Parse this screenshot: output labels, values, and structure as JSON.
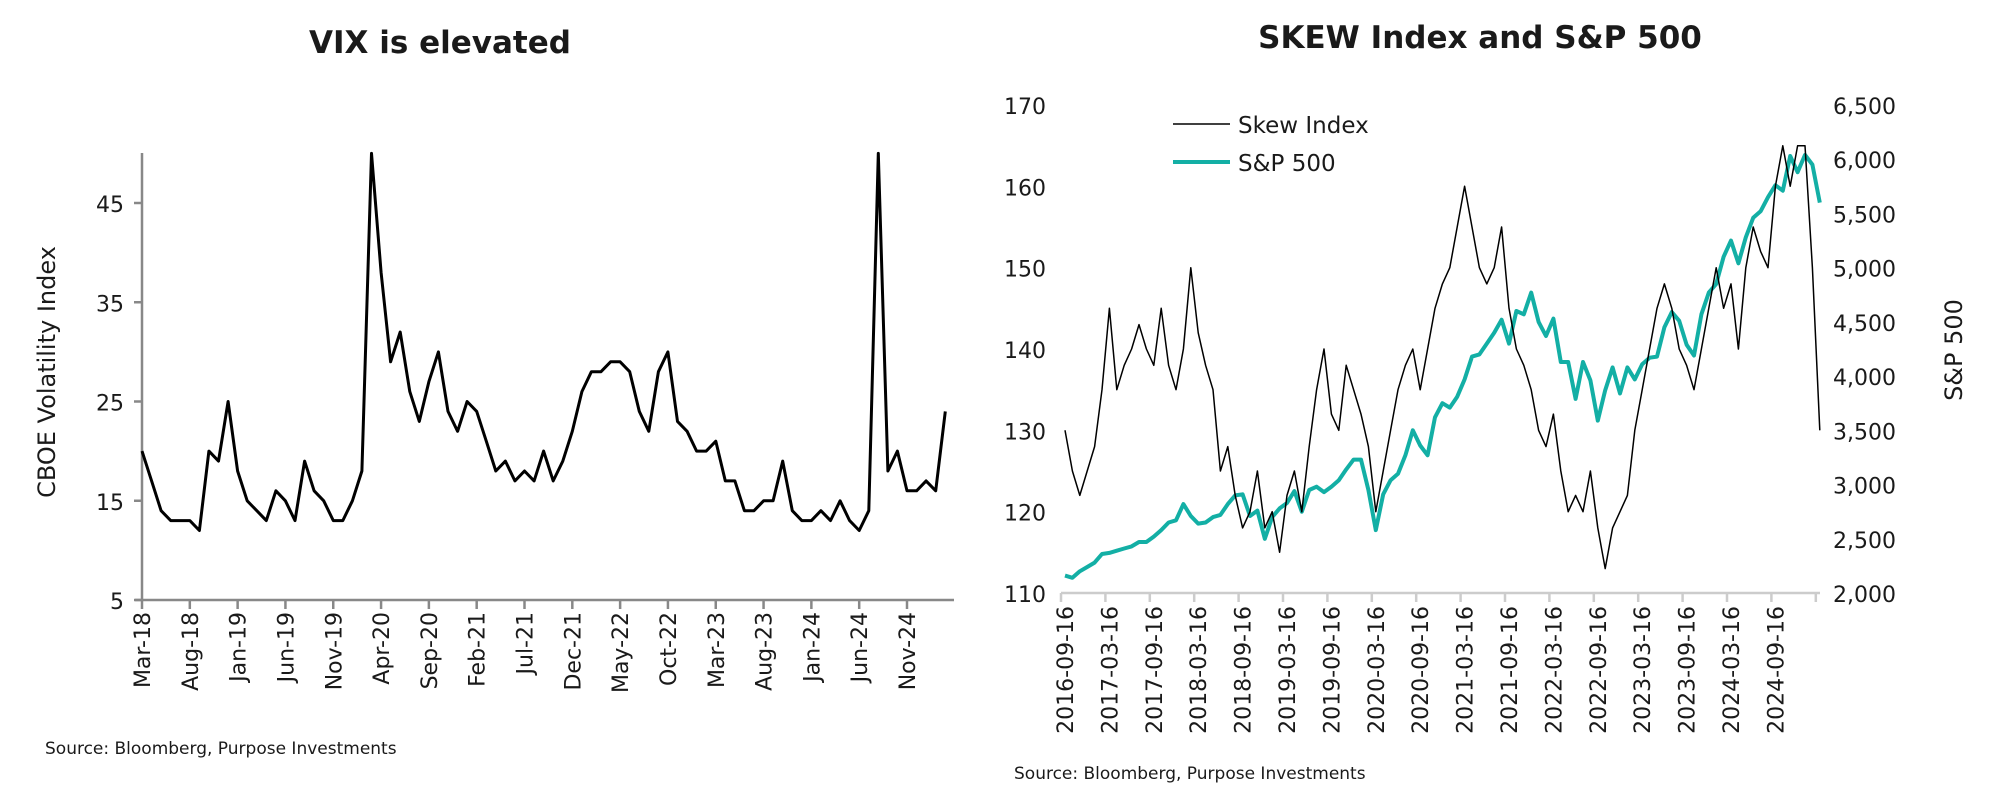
{
  "chart_data": [
    {
      "type": "line",
      "title": "VIX is elevated",
      "xlabel": "",
      "ylabel": "CBOE Volatility Index",
      "ylim": [
        5,
        50
      ],
      "yticks": [
        "5",
        "15",
        "25",
        "35",
        "45"
      ],
      "xticks": [
        "Mar-18",
        "Aug-18",
        "Jan-19",
        "Jun-19",
        "Nov-19",
        "Apr-20",
        "Sep-20",
        "Feb-21",
        "Jul-21",
        "Dec-21",
        "May-22",
        "Oct-22",
        "Mar-23",
        "Aug-23",
        "Jan-24",
        "Jun-24",
        "Nov-24"
      ],
      "grid": false,
      "source": "Source: Bloomberg, Purpose Investments",
      "x_start": "Mar-18",
      "x_frequency": "monthly",
      "series": [
        {
          "color": "#000000",
          "values": [
            20,
            17,
            14,
            13,
            13,
            13,
            12,
            20,
            19,
            25,
            18,
            15,
            14,
            13,
            16,
            15,
            13,
            19,
            16,
            15,
            13,
            13,
            15,
            18,
            50,
            38,
            29,
            32,
            26,
            23,
            27,
            30,
            24,
            22,
            25,
            24,
            21,
            18,
            19,
            17,
            18,
            17,
            20,
            17,
            19,
            22,
            26,
            28,
            28,
            29,
            29,
            28,
            24,
            22,
            28,
            30,
            23,
            22,
            20,
            20,
            21,
            17,
            17,
            14,
            14,
            15,
            15,
            19,
            14,
            13,
            13,
            14,
            13,
            15,
            13,
            12,
            14,
            50,
            18,
            20,
            16,
            16,
            17,
            16,
            24
          ]
        }
      ]
    },
    {
      "type": "line",
      "title": "SKEW Index and S&P 500",
      "xlabel": "",
      "ylabel_left": "",
      "ylabel_right": "S&P 500",
      "ylim_left": [
        110,
        170
      ],
      "ylim_right": [
        2000,
        6500
      ],
      "yticks_left": [
        "110",
        "120",
        "130",
        "140",
        "150",
        "160",
        "170"
      ],
      "yticks_right": [
        "2,000",
        "2,500",
        "3,000",
        "3,500",
        "4,000",
        "4,500",
        "5,000",
        "5,500",
        "6,000",
        "6,500"
      ],
      "xticks": [
        "2016-09-16",
        "2017-03-16",
        "2017-09-16",
        "2018-03-16",
        "2018-09-16",
        "2019-03-16",
        "2019-09-16",
        "2020-03-16",
        "2020-09-16",
        "2021-03-16",
        "2021-09-16",
        "2022-03-16",
        "2022-09-16",
        "2023-03-16",
        "2023-09-16",
        "2024-03-16",
        "2024-09-16"
      ],
      "grid": false,
      "legend": "top-left",
      "source": "Source: Bloomberg, Purpose Investments",
      "x_start": "2016-09",
      "x_frequency": "monthly",
      "series": [
        {
          "name": "Skew Index",
          "axis": "left",
          "color": "#000000",
          "values": [
            130,
            125,
            122,
            125,
            128,
            135,
            145,
            135,
            138,
            140,
            143,
            140,
            138,
            145,
            138,
            135,
            140,
            150,
            142,
            138,
            135,
            125,
            128,
            122,
            118,
            120,
            125,
            118,
            120,
            115,
            122,
            125,
            120,
            128,
            135,
            140,
            132,
            130,
            138,
            135,
            132,
            128,
            120,
            125,
            130,
            135,
            138,
            140,
            135,
            140,
            145,
            148,
            150,
            155,
            160,
            155,
            150,
            148,
            150,
            155,
            145,
            140,
            138,
            135,
            130,
            128,
            132,
            125,
            120,
            122,
            120,
            125,
            118,
            113,
            118,
            120,
            122,
            130,
            135,
            140,
            145,
            148,
            145,
            140,
            138,
            135,
            140,
            145,
            150,
            145,
            148,
            140,
            150,
            155,
            152,
            150,
            160,
            165,
            160,
            165,
            165,
            150,
            130
          ]
        },
        {
          "name": "S&P 500",
          "axis": "right",
          "color": "#13AFA5",
          "values": [
            2160,
            2140,
            2200,
            2240,
            2280,
            2360,
            2370,
            2390,
            2410,
            2430,
            2470,
            2470,
            2520,
            2580,
            2650,
            2670,
            2820,
            2710,
            2640,
            2650,
            2700,
            2720,
            2820,
            2900,
            2910,
            2710,
            2760,
            2500,
            2700,
            2780,
            2830,
            2940,
            2750,
            2950,
            2980,
            2930,
            2980,
            3040,
            3140,
            3230,
            3230,
            2950,
            2580,
            2910,
            3040,
            3100,
            3270,
            3500,
            3360,
            3270,
            3620,
            3750,
            3710,
            3810,
            3970,
            4180,
            4200,
            4300,
            4400,
            4520,
            4300,
            4600,
            4570,
            4770,
            4500,
            4370,
            4530,
            4130,
            4130,
            3790,
            4130,
            3960,
            3590,
            3870,
            4080,
            3840,
            4080,
            3970,
            4110,
            4170,
            4180,
            4450,
            4590,
            4510,
            4290,
            4190,
            4570,
            4770,
            4850,
            5100,
            5250,
            5040,
            5280,
            5460,
            5520,
            5650,
            5760,
            5710,
            6030,
            5880,
            6040,
            5950,
            5600
          ]
        }
      ]
    }
  ]
}
